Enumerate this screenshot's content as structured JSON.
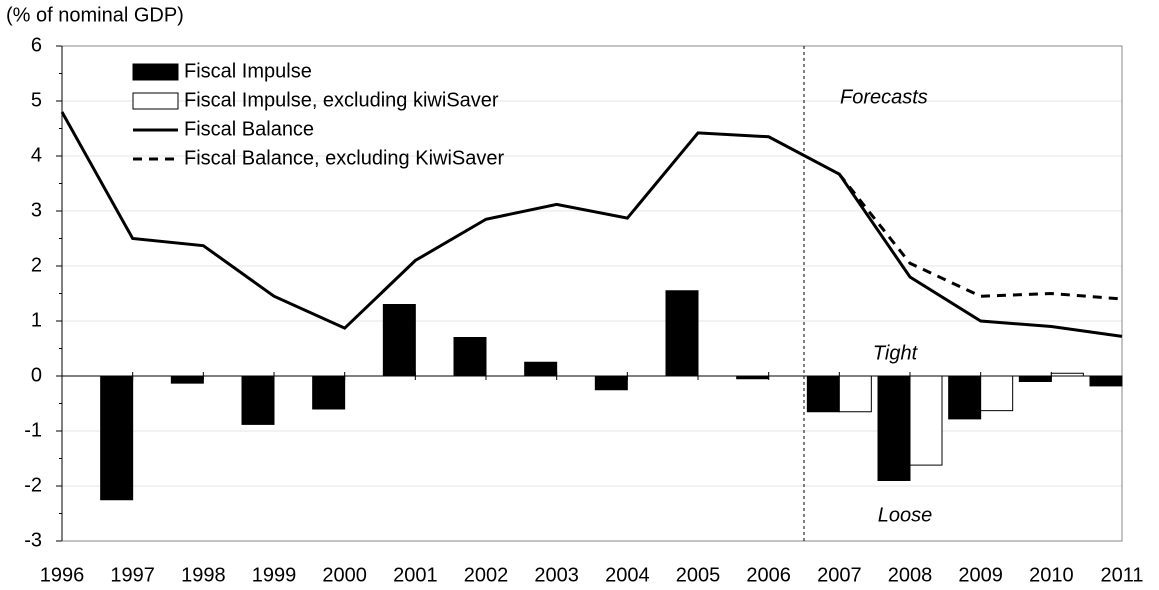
{
  "chart_data": {
    "type": "bar",
    "y_label": "(% of nominal GDP)",
    "x": [
      1996,
      1997,
      1998,
      1999,
      2000,
      2001,
      2002,
      2003,
      2004,
      2005,
      2006,
      2007,
      2008,
      2009,
      2010,
      2011
    ],
    "xlim": [
      1996,
      2011
    ],
    "xticks": [
      1996,
      1997,
      1998,
      1999,
      2000,
      2001,
      2002,
      2003,
      2004,
      2005,
      2006,
      2007,
      2008,
      2009,
      2010,
      2011
    ],
    "ylim": [
      -3,
      6
    ],
    "yticks": [
      -3,
      -2,
      -1,
      0,
      1,
      2,
      3,
      4,
      5,
      6
    ],
    "grid": true,
    "legend": "upper left",
    "forecast_start": 2006.5,
    "annotations": [
      "Forecasts",
      "Tight",
      "Loose"
    ],
    "series": [
      {
        "name": "Fiscal Impulse",
        "type": "bar",
        "color": "#000000",
        "values": [
          null,
          -2.25,
          -0.13,
          -0.88,
          -0.6,
          1.3,
          0.7,
          0.25,
          -0.25,
          1.55,
          -0.05,
          -0.65,
          -1.9,
          -0.78,
          -0.1,
          -0.18
        ]
      },
      {
        "name": "Fiscal Impulse, excluding kiwiSaver",
        "type": "bar",
        "color": "#ffffff",
        "edge": "#000000",
        "values": [
          null,
          null,
          null,
          null,
          null,
          null,
          null,
          null,
          null,
          null,
          null,
          -0.65,
          -1.62,
          -0.63,
          0.05,
          null
        ]
      },
      {
        "name": "Fiscal Balance",
        "type": "line",
        "color": "#000000",
        "values": [
          4.8,
          2.5,
          2.37,
          1.45,
          0.87,
          2.1,
          2.85,
          3.12,
          2.87,
          4.42,
          4.35,
          3.67,
          1.8,
          1.0,
          0.9,
          0.72
        ]
      },
      {
        "name": "Fiscal Balance, excluding KiwiSaver",
        "type": "line",
        "color": "#000000",
        "dashed": true,
        "values": [
          null,
          null,
          null,
          null,
          null,
          null,
          null,
          null,
          null,
          null,
          null,
          3.67,
          2.05,
          1.45,
          1.5,
          1.4
        ]
      }
    ]
  }
}
